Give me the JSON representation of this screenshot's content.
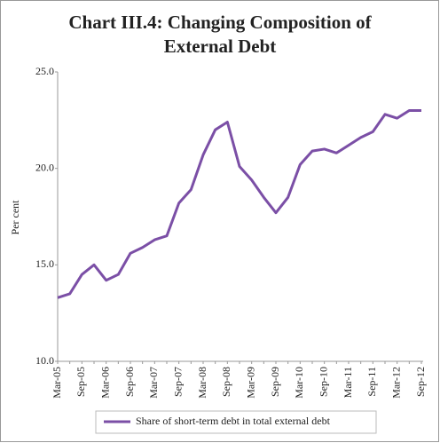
{
  "chart_data": {
    "type": "line",
    "title": [
      "Chart III.4: Changing Composition of",
      "External Debt"
    ],
    "y_label": "Per cent",
    "categories": [
      "Mar-05",
      null,
      "Sep-05",
      null,
      "Mar-06",
      null,
      "Sep-06",
      null,
      "Mar-07",
      null,
      "Sep-07",
      null,
      "Mar-08",
      null,
      "Sep-08",
      null,
      "Mar-09",
      null,
      "Sep-09",
      null,
      "Mar-10",
      null,
      "Sep-10",
      null,
      "Mar-11",
      null,
      "Sep-11",
      null,
      "Mar-12",
      null,
      "Sep-12"
    ],
    "series": [
      {
        "name": "Share of short-term debt in total external debt",
        "color": "#7b4fa6",
        "values": [
          13.3,
          13.5,
          14.5,
          15.0,
          14.2,
          14.5,
          15.6,
          15.9,
          16.3,
          16.5,
          18.2,
          18.9,
          20.7,
          22.0,
          22.4,
          20.1,
          19.4,
          18.5,
          17.7,
          18.5,
          20.2,
          20.9,
          21.0,
          20.8,
          21.2,
          21.6,
          21.9,
          22.8,
          22.6,
          23.0,
          23.0
        ]
      }
    ],
    "ylim": [
      10,
      25
    ],
    "yticks": [
      {
        "value": 10,
        "label": "10.0"
      },
      {
        "value": 15,
        "label": "15.0"
      },
      {
        "value": 20,
        "label": "20.0"
      },
      {
        "value": 25,
        "label": "25.0"
      }
    ],
    "grid": false
  }
}
